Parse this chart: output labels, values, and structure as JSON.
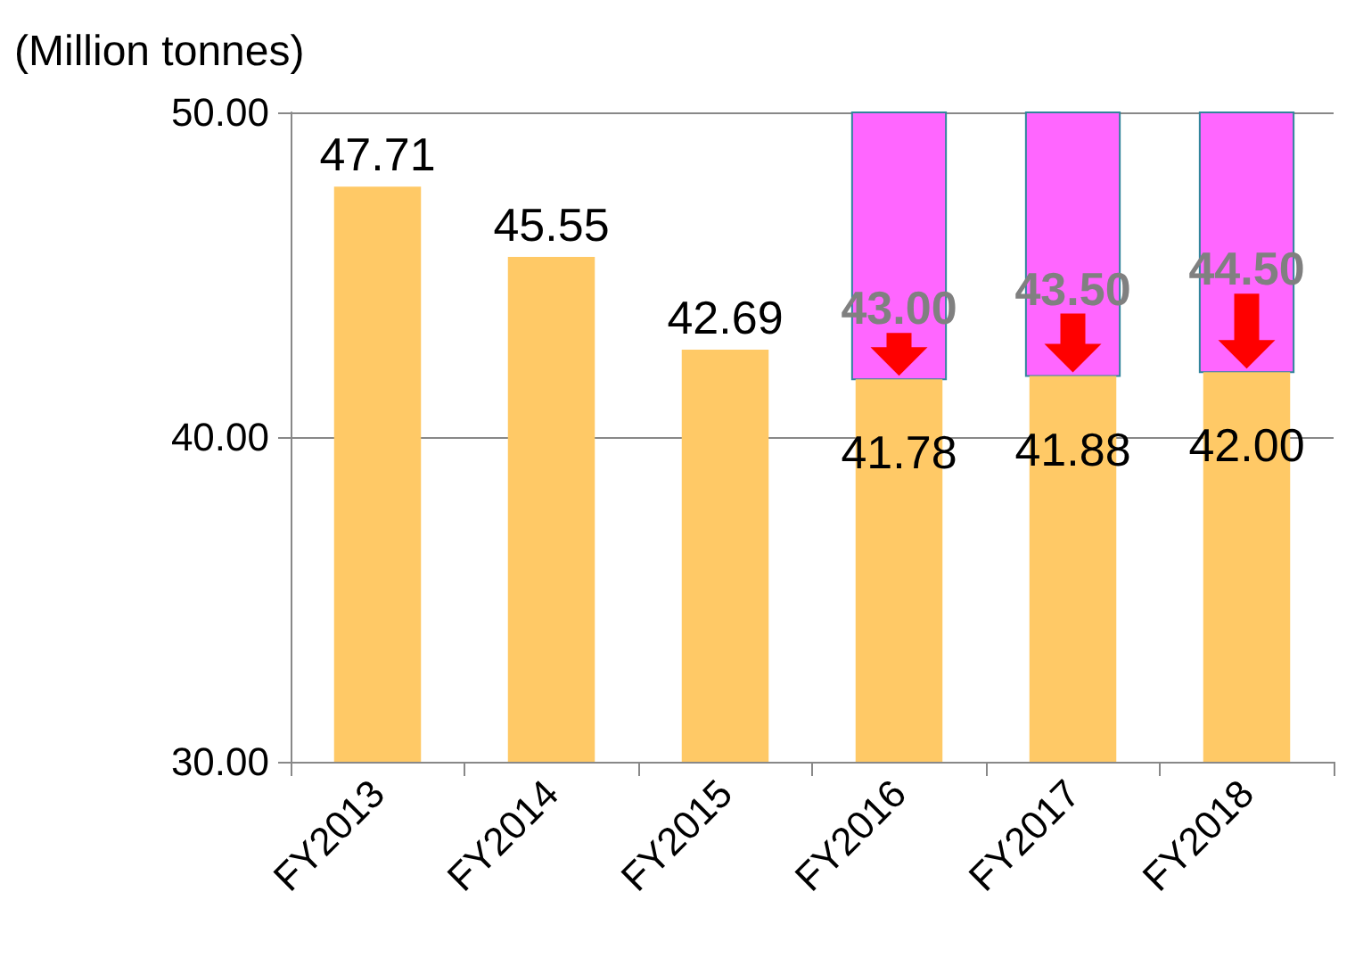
{
  "chart_data": {
    "type": "bar",
    "ylabel": "(Million tonnes)",
    "categories": [
      "FY2013",
      "FY2014",
      "FY2015",
      "FY2016",
      "FY2017",
      "FY2018"
    ],
    "series": [
      {
        "color": "#ffc966",
        "values": [
          47.71,
          45.55,
          42.69,
          41.78,
          41.88,
          42.0
        ],
        "value_labels": [
          "47.71",
          "45.55",
          "42.69",
          "41.78",
          "41.88",
          "42.00"
        ]
      },
      {
        "color": "#ff66ff",
        "values": [
          null,
          null,
          null,
          8.22,
          8.12,
          8.0
        ],
        "base": [
          null,
          null,
          null,
          41.78,
          41.88,
          42.0
        ]
      }
    ],
    "ylim": [
      30,
      50
    ],
    "yticks": [
      {
        "value": 30,
        "label": "30.00"
      },
      {
        "value": 40,
        "label": "40.00"
      },
      {
        "value": 50,
        "label": "50.00"
      }
    ],
    "grid": "y",
    "annotations": [
      "43.00",
      "43.50",
      "44.50"
    ]
  }
}
